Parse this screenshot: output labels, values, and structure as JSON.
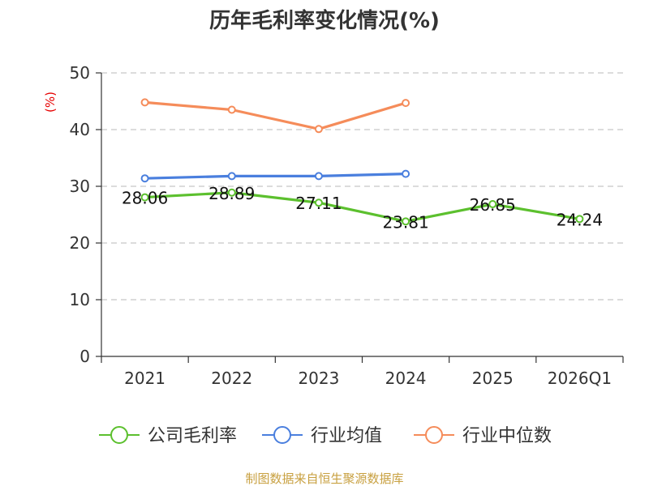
{
  "chart_data": {
    "type": "line",
    "title": "历年毛利率变化情况(%)",
    "ylabel": "(%)",
    "xlabel": "",
    "categories": [
      "2021",
      "2022",
      "2023",
      "2024",
      "2025",
      "2026Q1"
    ],
    "ylim": [
      0,
      50
    ],
    "yticks": [
      0,
      10,
      20,
      30,
      40,
      50
    ],
    "grid": true,
    "legend_position": "bottom",
    "series": [
      {
        "key": "company",
        "name": "公司毛利率",
        "color": "#5cc02e",
        "values": [
          28.06,
          28.89,
          27.11,
          23.81,
          26.85,
          24.24
        ],
        "data_labels": [
          "28.06",
          "28.89",
          "27.11",
          "23.81",
          "26.85",
          "24.24"
        ]
      },
      {
        "key": "industry-mean",
        "name": "行业均值",
        "color": "#4a7fde",
        "values": [
          31.4,
          31.8,
          31.8,
          32.2,
          null,
          null
        ]
      },
      {
        "key": "industry-median",
        "name": "行业中位数",
        "color": "#f58c5a",
        "values": [
          44.8,
          43.5,
          40.1,
          44.7,
          null,
          null
        ]
      }
    ]
  },
  "source": "制图数据来自恒生聚源数据库"
}
